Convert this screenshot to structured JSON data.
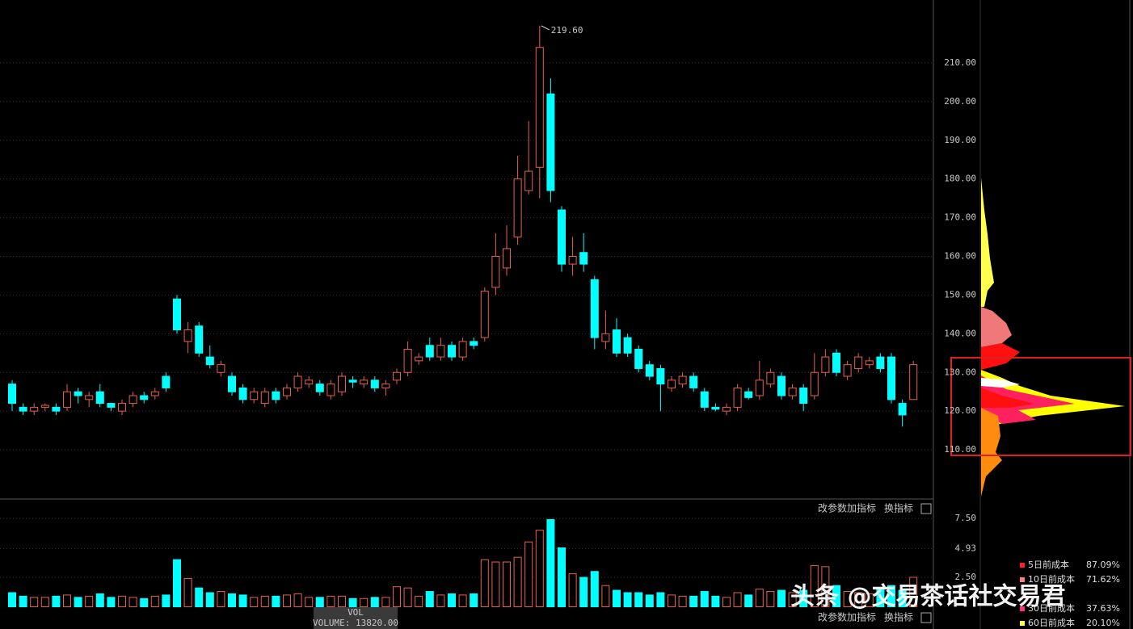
{
  "chart_data": {
    "type": "candlestick",
    "annotation": "219.60",
    "open": [
      127,
      121,
      120,
      121,
      121,
      121,
      125,
      123,
      125,
      122,
      120,
      122,
      124,
      124,
      129,
      149,
      138,
      142,
      134,
      130,
      129,
      126,
      123,
      122,
      125,
      124,
      126,
      127,
      127,
      124,
      125,
      128,
      127,
      128,
      126,
      128,
      130,
      133,
      137,
      134,
      137,
      134,
      138,
      139,
      152,
      157,
      165,
      177,
      183,
      202,
      172,
      158,
      161,
      154,
      138,
      141,
      139,
      136,
      132,
      131,
      126,
      127,
      129,
      125,
      121,
      120,
      121,
      125,
      124,
      127,
      129,
      124,
      126,
      124,
      130,
      135,
      129,
      131,
      132,
      134,
      134,
      122,
      123
    ],
    "high": [
      128,
      122,
      122,
      122,
      122,
      127,
      126,
      125,
      127,
      122,
      123,
      125,
      125,
      126,
      130,
      150,
      143,
      143,
      137,
      133,
      130,
      127,
      126,
      126,
      126,
      127,
      130,
      129,
      128,
      128,
      130,
      129,
      129,
      129,
      128,
      131,
      138,
      135,
      139,
      139,
      138,
      139,
      139,
      152,
      166,
      168,
      186,
      195,
      219.6,
      206,
      173,
      165,
      166,
      155,
      146,
      144,
      140,
      137,
      133,
      132,
      129,
      130,
      130,
      126,
      122,
      122,
      127,
      126,
      133,
      131,
      130,
      127,
      127,
      135,
      136,
      136,
      133,
      135,
      134,
      135,
      135,
      123,
      133
    ],
    "low": [
      120,
      119,
      119,
      120,
      119,
      120,
      122,
      121,
      121,
      120,
      119,
      121,
      122,
      123,
      125,
      140,
      135,
      134,
      131,
      129,
      124,
      122,
      122,
      121,
      122,
      123,
      125,
      126,
      124,
      123,
      124,
      126,
      126,
      125,
      124,
      127,
      129,
      132,
      133,
      133,
      133,
      133,
      136,
      138,
      150,
      155,
      163,
      176,
      175,
      174,
      156,
      155,
      156,
      136,
      136,
      134,
      134,
      130,
      128,
      120,
      125,
      126,
      125,
      120,
      120,
      119,
      120,
      123,
      123,
      126,
      123,
      123,
      120,
      123,
      129,
      129,
      128,
      130,
      131,
      130,
      122,
      116,
      123
    ],
    "close": [
      122,
      120,
      121,
      121.5,
      120,
      125,
      124,
      124,
      122,
      121,
      122,
      124,
      123,
      125,
      126,
      141,
      141,
      135,
      132,
      132,
      125,
      123,
      125,
      125,
      123,
      126,
      129,
      128,
      125,
      127,
      129,
      127.5,
      128,
      126,
      127,
      130,
      136,
      134,
      134,
      137,
      134,
      138,
      137,
      151,
      160,
      162,
      180,
      182,
      214,
      177,
      158,
      160,
      158,
      139,
      140,
      135,
      135,
      131,
      129,
      127,
      128,
      129,
      126,
      121,
      120.5,
      121,
      126,
      123.5,
      128,
      130,
      124,
      126,
      122,
      130,
      134,
      130,
      132,
      134,
      133,
      131,
      123,
      119,
      132
    ],
    "volume": [
      1.2,
      0.9,
      0.8,
      0.8,
      0.9,
      1.0,
      0.8,
      0.9,
      1.1,
      0.8,
      0.9,
      0.8,
      0.7,
      0.9,
      1.0,
      4.0,
      2.4,
      1.6,
      1.2,
      1.3,
      1.1,
      1.0,
      0.8,
      0.9,
      0.9,
      1.0,
      1.1,
      0.8,
      0.8,
      0.9,
      0.9,
      0.7,
      0.7,
      0.8,
      0.8,
      1.7,
      1.6,
      0.9,
      1.3,
      1.0,
      1.1,
      1.0,
      1.1,
      4.0,
      3.8,
      3.8,
      4.2,
      5.5,
      6.5,
      7.4,
      5.0,
      2.8,
      2.5,
      3.0,
      1.8,
      1.4,
      1.2,
      1.2,
      1.0,
      1.2,
      1.0,
      0.9,
      0.9,
      1.3,
      0.9,
      0.8,
      1.2,
      1.0,
      1.5,
      1.3,
      1.4,
      1.2,
      1.4,
      3.5,
      3.4,
      1.8,
      1.3,
      1.2,
      1.1,
      1.6,
      1.8,
      1.4,
      2.5
    ],
    "up_color": "#e8604c",
    "down_color": "#00ffff",
    "ylim": [
      100,
      220
    ],
    "yticks": [
      {
        "value": 110,
        "label": "110.00"
      },
      {
        "value": 120,
        "label": "120.00"
      },
      {
        "value": 130,
        "label": "130.00"
      },
      {
        "value": 140,
        "label": "140.00"
      },
      {
        "value": 150,
        "label": "150.00"
      },
      {
        "value": 160,
        "label": "160.00"
      },
      {
        "value": 170,
        "label": "170.00"
      },
      {
        "value": 180,
        "label": "180.00"
      },
      {
        "value": 190,
        "label": "190.00"
      },
      {
        "value": 200,
        "label": "200.00"
      },
      {
        "value": 210,
        "label": "210.00"
      }
    ],
    "grid": true,
    "volume_ylim": [
      0,
      7.5
    ],
    "volume_yticks": [
      {
        "value": 2.5,
        "label": "2.50"
      },
      {
        "value": 4.93,
        "label": "4.93"
      },
      {
        "value": 7.5,
        "label": "7.50"
      }
    ],
    "volume_title": "VOL",
    "volume_readout": "VOLUME: 13820.00",
    "buttons": [
      "改参数",
      "加指标",
      "换指标"
    ],
    "cost_legend": [
      {
        "name": "5日前成本",
        "value": "87.09%",
        "color": "#ff2020"
      },
      {
        "name": "10日前成本",
        "value": "71.62%",
        "color": "#ff8080"
      },
      {
        "name": "30日前成本",
        "value": "37.63%",
        "color": "#ff3080"
      },
      {
        "name": "60日前成本",
        "value": "20.10%",
        "color": "#ffff40"
      }
    ],
    "watermark": "头条 @交易茶话社交易君"
  }
}
